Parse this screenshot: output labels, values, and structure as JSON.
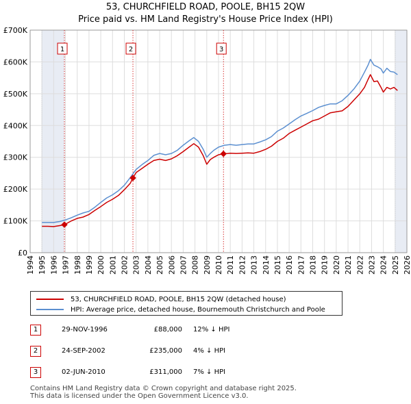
{
  "chart_data": {
    "type": "line",
    "title": "53, CHURCHFIELD ROAD, POOLE, BH15 2QW",
    "subtitle": "Price paid vs. HM Land Registry's House Price Index (HPI)",
    "xlabel": "",
    "ylabel": "",
    "xlim": [
      1994,
      2026
    ],
    "ylim": [
      0,
      700000
    ],
    "x_ticks": [
      "1994",
      "1995",
      "1996",
      "1997",
      "1998",
      "1999",
      "2000",
      "2001",
      "2002",
      "2003",
      "2004",
      "2005",
      "2006",
      "2007",
      "2008",
      "2009",
      "2010",
      "2011",
      "2012",
      "2013",
      "2014",
      "2015",
      "2016",
      "2017",
      "2018",
      "2019",
      "2020",
      "2021",
      "2022",
      "2023",
      "2024",
      "2025",
      "2026"
    ],
    "y_ticks": [
      {
        "value": 0,
        "label": "£0"
      },
      {
        "value": 100000,
        "label": "£100K"
      },
      {
        "value": 200000,
        "label": "£200K"
      },
      {
        "value": 300000,
        "label": "£300K"
      },
      {
        "value": 400000,
        "label": "£400K"
      },
      {
        "value": 500000,
        "label": "£500K"
      },
      {
        "value": 600000,
        "label": "£600K"
      },
      {
        "value": 700000,
        "label": "£700K"
      }
    ],
    "grid": true,
    "shaded_ranges": [
      [
        1995.0,
        1996.91
      ],
      [
        2025.0,
        2026.0
      ]
    ],
    "series": [
      {
        "name": "53, CHURCHFIELD ROAD, POOLE, BH15 2QW (detached house)",
        "color": "#cc0000",
        "x": [
          1995.0,
          1995.5,
          1996.0,
          1996.5,
          1996.91,
          1997.5,
          1998.0,
          1998.5,
          1999.0,
          1999.5,
          2000.0,
          2000.5,
          2001.0,
          2001.5,
          2002.0,
          2002.5,
          2002.73,
          2003.0,
          2003.5,
          2004.0,
          2004.5,
          2005.0,
          2005.5,
          2006.0,
          2006.5,
          2007.0,
          2007.5,
          2007.9,
          2008.3,
          2008.7,
          2009.0,
          2009.3,
          2009.6,
          2010.0,
          2010.42,
          2010.8,
          2011.0,
          2011.5,
          2012.0,
          2012.5,
          2013.0,
          2013.5,
          2014.0,
          2014.5,
          2015.0,
          2015.5,
          2016.0,
          2016.5,
          2017.0,
          2017.5,
          2018.0,
          2018.5,
          2019.0,
          2019.5,
          2020.0,
          2020.5,
          2021.0,
          2021.5,
          2022.0,
          2022.4,
          2022.7,
          2022.9,
          2023.2,
          2023.5,
          2023.8,
          2024.0,
          2024.3,
          2024.6,
          2024.9,
          2025.2
        ],
        "y": [
          83000,
          83000,
          82000,
          85000,
          88000,
          100000,
          108000,
          112000,
          120000,
          133000,
          145000,
          158000,
          168000,
          180000,
          198000,
          218000,
          235000,
          252000,
          265000,
          278000,
          290000,
          294000,
          290000,
          295000,
          305000,
          318000,
          332000,
          343000,
          332000,
          305000,
          278000,
          293000,
          300000,
          308000,
          311000,
          312000,
          313000,
          312000,
          313000,
          314000,
          313000,
          318000,
          325000,
          335000,
          350000,
          360000,
          375000,
          385000,
          395000,
          405000,
          415000,
          420000,
          430000,
          440000,
          443000,
          446000,
          460000,
          480000,
          500000,
          520000,
          545000,
          560000,
          538000,
          540000,
          520000,
          505000,
          520000,
          515000,
          520000,
          510000
        ]
      },
      {
        "name": "HPI: Average price, detached house, Bournemouth Christchurch and Poole",
        "color": "#5b8fd0",
        "x": [
          1995.0,
          1995.5,
          1996.0,
          1996.5,
          1997.0,
          1997.5,
          1998.0,
          1998.5,
          1999.0,
          1999.5,
          2000.0,
          2000.5,
          2001.0,
          2001.5,
          2002.0,
          2002.5,
          2003.0,
          2003.5,
          2004.0,
          2004.5,
          2005.0,
          2005.5,
          2006.0,
          2006.5,
          2007.0,
          2007.5,
          2007.9,
          2008.3,
          2008.7,
          2009.0,
          2009.3,
          2009.6,
          2010.0,
          2010.5,
          2011.0,
          2011.5,
          2012.0,
          2012.5,
          2013.0,
          2013.5,
          2014.0,
          2014.5,
          2015.0,
          2015.5,
          2016.0,
          2016.5,
          2017.0,
          2017.5,
          2018.0,
          2018.5,
          2019.0,
          2019.5,
          2020.0,
          2020.5,
          2021.0,
          2021.5,
          2022.0,
          2022.4,
          2022.7,
          2022.9,
          2023.2,
          2023.5,
          2023.8,
          2024.0,
          2024.3,
          2024.6,
          2024.9,
          2025.2
        ],
        "y": [
          95000,
          95000,
          95000,
          98000,
          103000,
          110000,
          118000,
          125000,
          130000,
          143000,
          158000,
          172000,
          182000,
          195000,
          212000,
          236000,
          262000,
          277000,
          290000,
          306000,
          312000,
          308000,
          312000,
          322000,
          338000,
          352000,
          362000,
          350000,
          325000,
          300000,
          312000,
          322000,
          332000,
          338000,
          340000,
          338000,
          340000,
          342000,
          342000,
          348000,
          355000,
          365000,
          382000,
          392000,
          405000,
          418000,
          430000,
          438000,
          447000,
          457000,
          463000,
          468000,
          468000,
          478000,
          495000,
          515000,
          540000,
          568000,
          590000,
          608000,
          590000,
          585000,
          578000,
          565000,
          580000,
          570000,
          568000,
          560000
        ]
      }
    ],
    "events": [
      {
        "label": "1",
        "x": 1996.91,
        "y": 88000
      },
      {
        "label": "2",
        "x": 2002.73,
        "y": 235000
      },
      {
        "label": "3",
        "x": 2010.42,
        "y": 311000
      }
    ]
  },
  "legend": {
    "items": [
      {
        "label": "53, CHURCHFIELD ROAD, POOLE, BH15 2QW (detached house)",
        "color": "#cc0000"
      },
      {
        "label": "HPI: Average price, detached house, Bournemouth Christchurch and Poole",
        "color": "#5b8fd0"
      }
    ]
  },
  "transactions": [
    {
      "num": "1",
      "date": "29-NOV-1996",
      "price": "£88,000",
      "hpi": "12% ↓ HPI"
    },
    {
      "num": "2",
      "date": "24-SEP-2002",
      "price": "£235,000",
      "hpi": "4% ↓ HPI"
    },
    {
      "num": "3",
      "date": "02-JUN-2010",
      "price": "£311,000",
      "hpi": "7% ↓ HPI"
    }
  ],
  "footer": {
    "line1": "Contains HM Land Registry data © Crown copyright and database right 2025.",
    "line2": "This data is licensed under the Open Government Licence v3.0."
  }
}
